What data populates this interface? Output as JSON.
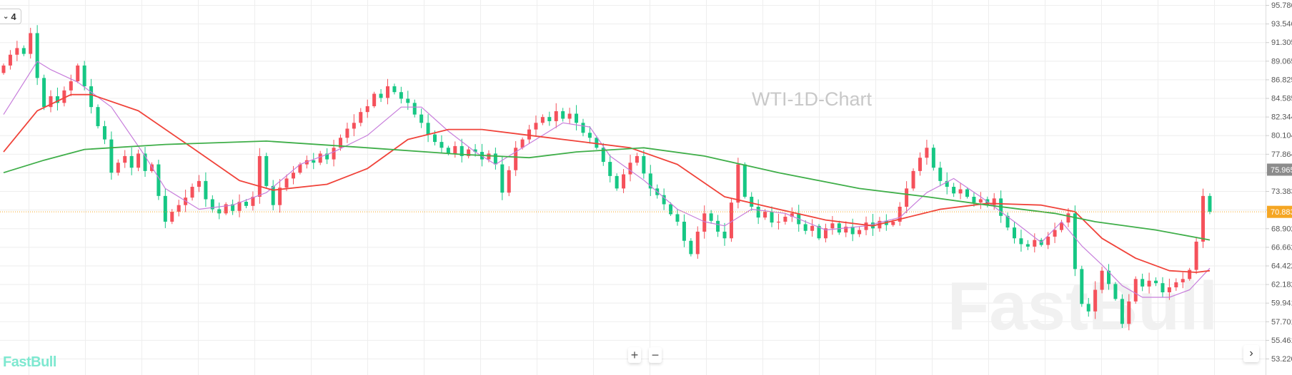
{
  "toolbar": {
    "interval_label": "4",
    "interval_icon": "chevron-down-icon"
  },
  "watermark": {
    "title": "WTI-1D-Chart",
    "brand": "FastBull"
  },
  "logo": "FastBull",
  "controls": {
    "zoom_in": "+",
    "zoom_out": "−",
    "scroll_right": "›"
  },
  "colors": {
    "up": "#f5515b",
    "down": "#16c784",
    "ma_fast": "#c77ddb",
    "ma_mid": "#f0433a",
    "ma_slow": "#3fae49",
    "last_price": "#f5a623",
    "crosshair_tag": "#8c8c8c"
  },
  "chart_data": {
    "type": "candlestick",
    "title": "WTI-1D-Chart",
    "ylim": [
      53.22,
      95.786
    ],
    "y_ticks": [
      "95.786",
      "93.546",
      "91.305",
      "89.065",
      "86.825",
      "84.585",
      "82.344",
      "80.104",
      "77.864",
      "75.625",
      "73.383",
      "71.143",
      "68.902",
      "66.662",
      "64.422",
      "62.182",
      "59.941",
      "57.701",
      "55.461",
      "53.220"
    ],
    "hidden_ticks": [
      "75.625",
      "71.143"
    ],
    "last_price": "70.883",
    "marker_price": "75.965",
    "grid": true,
    "closes": [
      88.5,
      89.8,
      90.6,
      89.9,
      92.4,
      87.0,
      83.5,
      84.8,
      84.0,
      85.5,
      86.6,
      88.5,
      86.0,
      83.5,
      81.2,
      79.6,
      75.6,
      76.8,
      77.6,
      76.2,
      77.9,
      75.8,
      76.6,
      72.8,
      69.7,
      70.9,
      71.7,
      72.6,
      73.9,
      74.6,
      72.4,
      71.2,
      70.7,
      71.8,
      71.0,
      72.1,
      71.6,
      72.7,
      77.6,
      74.0,
      71.7,
      73.8,
      74.9,
      75.6,
      76.6,
      77.1,
      76.8,
      77.9,
      77.2,
      78.6,
      79.8,
      80.9,
      81.6,
      82.9,
      83.6,
      85.1,
      84.6,
      86.0,
      85.3,
      84.5,
      84.0,
      82.6,
      81.6,
      80.2,
      79.3,
      78.6,
      77.9,
      78.8,
      77.6,
      78.4,
      78.1,
      77.2,
      77.9,
      76.6,
      73.2,
      75.9,
      78.6,
      79.6,
      80.8,
      81.6,
      82.3,
      81.8,
      83.0,
      82.1,
      82.7,
      81.6,
      80.4,
      79.8,
      78.6,
      76.9,
      75.2,
      73.7,
      75.4,
      76.8,
      77.6,
      75.5,
      73.7,
      72.9,
      71.8,
      70.6,
      69.7,
      67.4,
      65.8,
      68.5,
      70.7,
      69.8,
      68.5,
      67.7,
      72.0,
      76.6,
      72.7,
      71.5,
      70.2,
      70.9,
      69.6,
      69.7,
      70.3,
      70.7,
      69.4,
      68.6,
      69.2,
      67.7,
      68.9,
      69.5,
      68.4,
      69.1,
      68.2,
      68.7,
      69.6,
      68.9,
      69.8,
      69.3,
      69.7,
      71.5,
      73.7,
      75.8,
      77.4,
      78.6,
      76.2,
      74.6,
      73.9,
      73.1,
      73.6,
      72.7,
      72.0,
      72.4,
      71.7,
      72.5,
      70.4,
      69.0,
      67.7,
      67.0,
      66.7,
      67.5,
      66.9,
      67.9,
      68.7,
      69.6,
      70.7,
      64.0,
      59.8,
      58.9,
      61.5,
      63.8,
      62.2,
      60.4,
      57.4,
      60.1,
      62.8,
      61.9,
      62.6,
      62.3,
      61.2,
      61.8,
      62.4,
      62.8,
      63.9,
      67.3,
      72.8,
      70.883
    ],
    "first_open": 87.6,
    "moving_averages": [
      {
        "key": "ma_fast",
        "points": [
          [
            0,
            82.6
          ],
          [
            5,
            89.0
          ],
          [
            7,
            88.0
          ],
          [
            11,
            86.5
          ],
          [
            16,
            83.5
          ],
          [
            21,
            77.6
          ],
          [
            24,
            73.7
          ],
          [
            29,
            71.2
          ],
          [
            34,
            71.7
          ],
          [
            39,
            73.2
          ],
          [
            44,
            76.6
          ],
          [
            49,
            78.1
          ],
          [
            54,
            80.1
          ],
          [
            59,
            83.5
          ],
          [
            62,
            83.5
          ],
          [
            66,
            80.6
          ],
          [
            70,
            78.1
          ],
          [
            73,
            76.6
          ],
          [
            78,
            79.1
          ],
          [
            83,
            81.6
          ],
          [
            87,
            81.1
          ],
          [
            90,
            77.6
          ],
          [
            95,
            74.7
          ],
          [
            100,
            71.2
          ],
          [
            104,
            69.7
          ],
          [
            107,
            69.2
          ],
          [
            111,
            71.2
          ],
          [
            116,
            70.7
          ],
          [
            122,
            68.7
          ],
          [
            128,
            69.2
          ],
          [
            133,
            70.2
          ],
          [
            137,
            73.2
          ],
          [
            141,
            74.9
          ],
          [
            145,
            72.7
          ],
          [
            150,
            69.7
          ],
          [
            154,
            67.2
          ],
          [
            157,
            69.7
          ],
          [
            160,
            66.8
          ],
          [
            163,
            64.5
          ],
          [
            166,
            62.0
          ],
          [
            169,
            60.6
          ],
          [
            173,
            60.6
          ],
          [
            176,
            61.5
          ],
          [
            179,
            64.1
          ]
        ]
      },
      {
        "key": "ma_mid",
        "points": [
          [
            0,
            78.1
          ],
          [
            5,
            83.05
          ],
          [
            10,
            85.0
          ],
          [
            13,
            85.0
          ],
          [
            20,
            83.05
          ],
          [
            28,
            78.6
          ],
          [
            35,
            74.65
          ],
          [
            40,
            73.5
          ],
          [
            48,
            74.2
          ],
          [
            54,
            76.1
          ],
          [
            60,
            79.6
          ],
          [
            66,
            80.8
          ],
          [
            71,
            80.8
          ],
          [
            78,
            80.1
          ],
          [
            85,
            79.4
          ],
          [
            93,
            78.6
          ],
          [
            100,
            76.6
          ],
          [
            107,
            72.7
          ],
          [
            115,
            71.2
          ],
          [
            122,
            69.9
          ],
          [
            129,
            69.2
          ],
          [
            134,
            70.2
          ],
          [
            139,
            71.2
          ],
          [
            146,
            71.9
          ],
          [
            154,
            71.7
          ],
          [
            159,
            70.9
          ],
          [
            163,
            67.7
          ],
          [
            168,
            65.3
          ],
          [
            173,
            63.8
          ],
          [
            177,
            63.6
          ],
          [
            179,
            63.8
          ]
        ]
      },
      {
        "key": "ma_slow",
        "points": [
          [
            0,
            75.6
          ],
          [
            6,
            77.1
          ],
          [
            12,
            78.4
          ],
          [
            24,
            79.0
          ],
          [
            39,
            79.4
          ],
          [
            54,
            78.6
          ],
          [
            68,
            77.8
          ],
          [
            78,
            77.4
          ],
          [
            85,
            78.1
          ],
          [
            95,
            78.6
          ],
          [
            104,
            77.6
          ],
          [
            115,
            75.6
          ],
          [
            127,
            73.7
          ],
          [
            137,
            72.7
          ],
          [
            146,
            71.7
          ],
          [
            156,
            70.7
          ],
          [
            162,
            69.7
          ],
          [
            171,
            68.7
          ],
          [
            179,
            67.5
          ]
        ]
      }
    ]
  }
}
